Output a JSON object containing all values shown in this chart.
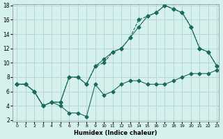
{
  "xlabel": "Humidex (Indice chaleur)",
  "ylabel": "",
  "bg_color": "#d6f0ee",
  "grid_color": "#b0d8d4",
  "line_color": "#1a6b5a",
  "xlim": [
    0,
    23
  ],
  "ylim": [
    2,
    18
  ],
  "xticks": [
    0,
    1,
    2,
    3,
    4,
    5,
    6,
    7,
    8,
    9,
    10,
    11,
    12,
    13,
    14,
    15,
    16,
    17,
    18,
    19,
    20,
    21,
    22,
    23
  ],
  "yticks": [
    2,
    4,
    6,
    8,
    10,
    12,
    14,
    16,
    18
  ],
  "line1_x": [
    0,
    1,
    2,
    3,
    4,
    5,
    6,
    7,
    8,
    9,
    10,
    11,
    12,
    13,
    14,
    15,
    16,
    17,
    18,
    19,
    20,
    21,
    22,
    23
  ],
  "line1_y": [
    7,
    7,
    6,
    4,
    4.5,
    4.5,
    8,
    8,
    7,
    9.5,
    10,
    11.5,
    12,
    13.5,
    16,
    16.5,
    17,
    18,
    17.5,
    17,
    15,
    12,
    11.5,
    9.5
  ],
  "line2_x": [
    0,
    1,
    2,
    3,
    4,
    5,
    6,
    7,
    8,
    9,
    10,
    11,
    12,
    13,
    14,
    15,
    16,
    17,
    18,
    19,
    20,
    21,
    22,
    23
  ],
  "line2_y": [
    7,
    7,
    6,
    4,
    4.5,
    4,
    3,
    3,
    2.5,
    7,
    5.5,
    6,
    7,
    7.5,
    7.5,
    7,
    7,
    7,
    7.5,
    8,
    8.5,
    8.5,
    8.5,
    9
  ],
  "line3_x": [
    0,
    1,
    2,
    3,
    4,
    5,
    6,
    7,
    8,
    9,
    10,
    11,
    12,
    13,
    14,
    15,
    16,
    17,
    18,
    19,
    20,
    21,
    22,
    23
  ],
  "line3_y": [
    7,
    7,
    6,
    4,
    4.5,
    4.5,
    8,
    8,
    7,
    9.5,
    10.5,
    11.5,
    12,
    13.5,
    15,
    16.5,
    17,
    18,
    17.5,
    17,
    15,
    12,
    11.5,
    9.5
  ]
}
